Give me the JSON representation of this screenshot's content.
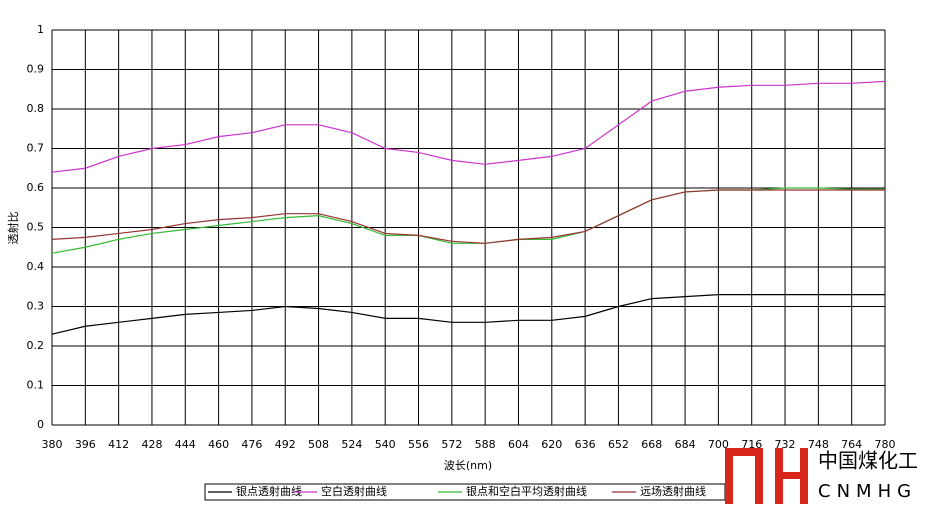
{
  "chart_data": {
    "type": "line",
    "y_label": "透射比",
    "x_label": "波长(nm)",
    "x": [
      380,
      396,
      412,
      428,
      444,
      460,
      476,
      492,
      508,
      524,
      540,
      556,
      572,
      588,
      604,
      620,
      636,
      652,
      668,
      684,
      700,
      716,
      732,
      748,
      764,
      780
    ],
    "series": [
      {
        "name": "银点透射曲线",
        "color": "#000000",
        "values": [
          0.23,
          0.25,
          0.26,
          0.27,
          0.28,
          0.285,
          0.29,
          0.3,
          0.295,
          0.285,
          0.27,
          0.27,
          0.26,
          0.26,
          0.265,
          0.265,
          0.275,
          0.3,
          0.32,
          0.325,
          0.33,
          0.33,
          0.33,
          0.33,
          0.33,
          0.33
        ]
      },
      {
        "name": "空白透射曲线",
        "color": "#cc33cc",
        "values": [
          0.64,
          0.65,
          0.68,
          0.7,
          0.71,
          0.73,
          0.74,
          0.76,
          0.76,
          0.74,
          0.7,
          0.69,
          0.67,
          0.66,
          0.67,
          0.68,
          0.7,
          0.76,
          0.82,
          0.845,
          0.855,
          0.86,
          0.86,
          0.865,
          0.865,
          0.87
        ]
      },
      {
        "name": "银点和空白平均透射曲线",
        "color": "#33bb33",
        "values": [
          0.435,
          0.45,
          0.47,
          0.485,
          0.495,
          0.505,
          0.515,
          0.525,
          0.53,
          0.51,
          0.48,
          0.48,
          0.46,
          0.46,
          0.47,
          0.47,
          0.49,
          0.53,
          0.57,
          0.59,
          0.595,
          0.595,
          0.6,
          0.6,
          0.597,
          0.597
        ]
      },
      {
        "name": "远场透射曲线",
        "color": "#993333",
        "values": [
          0.47,
          0.475,
          0.485,
          0.495,
          0.51,
          0.52,
          0.525,
          0.535,
          0.535,
          0.515,
          0.485,
          0.48,
          0.465,
          0.46,
          0.47,
          0.475,
          0.49,
          0.53,
          0.57,
          0.59,
          0.595,
          0.595,
          0.595,
          0.595,
          0.595,
          0.595
        ]
      }
    ],
    "xlim": [
      380,
      780
    ],
    "xticks": [
      380,
      396,
      412,
      428,
      444,
      460,
      476,
      492,
      508,
      524,
      540,
      556,
      572,
      588,
      604,
      620,
      636,
      652,
      668,
      684,
      700,
      716,
      732,
      748,
      764,
      780
    ],
    "ylim": [
      0,
      1
    ],
    "yticks": [
      0,
      0.1,
      0.2,
      0.3,
      0.4,
      0.5,
      0.6,
      0.7,
      0.8,
      0.9,
      1
    ],
    "grid": true,
    "legend": "bottom"
  },
  "watermark": {
    "title": "中国煤化工",
    "subtitle": "CNMHG"
  }
}
